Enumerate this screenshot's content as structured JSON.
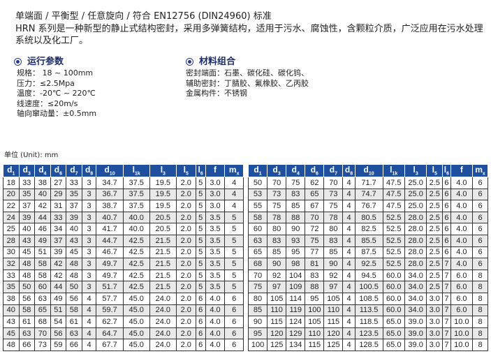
{
  "intro": {
    "line1": "单端面 / 平衡型 / 任意旋向 / 符合 EN12756 (DIN24960) 标准",
    "line2": "HRN 系列是一种新型的静止式结构密封，采用多弹簧结构，适用于污水、腐蚀性，含颗粒介质，广泛应用在污水处理",
    "line3": "系统以及化工厂。"
  },
  "operating": {
    "title": "运行参数",
    "items": [
      "规格： 18 ~ 100mm",
      "压力：≤2.5Mpa",
      "温度：-20℃ ~ 220℃",
      "线速度：≤20m/s",
      "轴向窜动量：±0.5mm"
    ]
  },
  "materials": {
    "title": "材料组合",
    "items": [
      "密封端面：石墨、碳化硅、碳化钨、",
      "辅助密封：丁腈胶、氟橡胶、乙丙胶",
      "金属构件：不锈钢"
    ]
  },
  "unit": "单位 (Unit): mm",
  "colors": {
    "header": "#1f4f9f",
    "alt_row": "#e9e9e9"
  },
  "headers": [
    [
      "d",
      "1"
    ],
    [
      "d",
      "3"
    ],
    [
      "d",
      "4"
    ],
    [
      "d",
      "6"
    ],
    [
      "d",
      "7"
    ],
    [
      "d",
      "8"
    ],
    [
      "d",
      "10"
    ],
    [
      "l",
      "1k"
    ],
    [
      "l",
      "3"
    ],
    [
      "l",
      "5"
    ],
    [
      "l",
      "6"
    ],
    [
      "f",
      ""
    ],
    [
      "m",
      "x"
    ]
  ],
  "left_rows": [
    [
      "18",
      "33",
      "38",
      "27",
      "33",
      "3",
      "34.7",
      "37.5",
      "19.5",
      "2.0",
      "5",
      "3.0",
      "4"
    ],
    [
      "20",
      "35",
      "40",
      "29",
      "35",
      "3",
      "36.7",
      "37.5",
      "19.5",
      "2.0",
      "5",
      "3.0",
      "4"
    ],
    [
      "22",
      "37",
      "42",
      "31",
      "37",
      "3",
      "38.7",
      "37.5",
      "19.5",
      "2.0",
      "5",
      "3.0",
      "4"
    ],
    [
      "24",
      "39",
      "44",
      "33",
      "39",
      "3",
      "40.7",
      "40.0",
      "20.5",
      "2.0",
      "5",
      "3.5",
      "5"
    ],
    [
      "25",
      "40",
      "46",
      "34",
      "40",
      "3",
      "41.7",
      "40.0",
      "20.5",
      "2.0",
      "5",
      "3.5",
      "5"
    ],
    [
      "28",
      "43",
      "49",
      "37",
      "43",
      "3",
      "44.7",
      "42.5",
      "21.5",
      "2.0",
      "5",
      "3.5",
      "5"
    ],
    [
      "30",
      "45",
      "51",
      "39",
      "45",
      "3",
      "46.7",
      "42.5",
      "21.5",
      "2.0",
      "5",
      "3.5",
      "5"
    ],
    [
      "32",
      "48",
      "58",
      "42",
      "48",
      "3",
      "49.7",
      "42.5",
      "21.5",
      "2.0",
      "5",
      "3.5",
      "5"
    ],
    [
      "33",
      "48",
      "58",
      "42",
      "48",
      "3",
      "49.7",
      "42.5",
      "21.5",
      "2.0",
      "5",
      "3.5",
      "5"
    ],
    [
      "35",
      "50",
      "60",
      "44",
      "50",
      "3",
      "51.7",
      "42.5",
      "21.5",
      "2.0",
      "5",
      "3.5",
      "5"
    ],
    [
      "38",
      "56",
      "63",
      "49",
      "56",
      "4",
      "57.7",
      "45.0",
      "24.0",
      "2.0",
      "6",
      "4.0",
      "6"
    ],
    [
      "40",
      "58",
      "65",
      "51",
      "58",
      "4",
      "59.7",
      "45.0",
      "24.0",
      "2.0",
      "6",
      "4.0",
      "6"
    ],
    [
      "43",
      "61",
      "68",
      "54",
      "61",
      "4",
      "62.7",
      "45.0",
      "24.0",
      "2.0",
      "6",
      "4.0",
      "6"
    ],
    [
      "45",
      "63",
      "70",
      "56",
      "63",
      "4",
      "64.7",
      "45.0",
      "24.0",
      "2.0",
      "6",
      "4.0",
      "6"
    ],
    [
      "48",
      "66",
      "73",
      "59",
      "66",
      "4",
      "67.7",
      "45.0",
      "24.0",
      "2.0",
      "6",
      "4.0",
      "6"
    ]
  ],
  "right_rows": [
    [
      "50",
      "70",
      "75",
      "62",
      "70",
      "4",
      "71.7",
      "47.5",
      "25.0",
      "2.5",
      "6",
      "4.0",
      "6"
    ],
    [
      "53",
      "73",
      "83",
      "65",
      "73",
      "4",
      "74.7",
      "47.5",
      "25.0",
      "2.5",
      "6",
      "4.0",
      "6"
    ],
    [
      "55",
      "75",
      "85",
      "67",
      "75",
      "4",
      "76.7",
      "47.5",
      "25.0",
      "2.5",
      "6",
      "4.0",
      "6"
    ],
    [
      "58",
      "78",
      "88",
      "70",
      "78",
      "4",
      "80.5",
      "52.5",
      "28.0",
      "2.5",
      "6",
      "4.0",
      "6"
    ],
    [
      "60",
      "80",
      "90",
      "72",
      "80",
      "4",
      "82.5",
      "52.5",
      "28.0",
      "2.5",
      "6",
      "4.0",
      "6"
    ],
    [
      "63",
      "83",
      "93",
      "75",
      "83",
      "4",
      "85.5",
      "52.5",
      "28.0",
      "2.5",
      "6",
      "4.0",
      "6"
    ],
    [
      "65",
      "85",
      "95",
      "77",
      "85",
      "4",
      "87.5",
      "52.5",
      "28.0",
      "2.5",
      "6",
      "4.0",
      "6"
    ],
    [
      "68",
      "90",
      "98",
      "81",
      "90",
      "4",
      "92.5",
      "52.5",
      "28.0",
      "2.5",
      "7",
      "4.0",
      "6"
    ],
    [
      "70",
      "92",
      "104",
      "83",
      "92",
      "4",
      "94.5",
      "60.0",
      "34.0",
      "2.5",
      "7",
      "6.0",
      "8"
    ],
    [
      "75",
      "97",
      "109",
      "88",
      "97",
      "4",
      "100.5",
      "60.0",
      "34.0",
      "2.5",
      "7",
      "6.0",
      "8"
    ],
    [
      "80",
      "105",
      "114",
      "95",
      "105",
      "4",
      "108.5",
      "60.0",
      "34.0",
      "3.0",
      "7",
      "6.0",
      "8"
    ],
    [
      "85",
      "110",
      "119",
      "100",
      "110",
      "4",
      "113.5",
      "60.0",
      "34.0",
      "3.0",
      "7",
      "6.0",
      "8"
    ],
    [
      "90",
      "115",
      "124",
      "105",
      "115",
      "4",
      "118.5",
      "65.0",
      "39.0",
      "3.0",
      "7",
      "10.0",
      "8"
    ],
    [
      "95",
      "120",
      "129",
      "110",
      "120",
      "4",
      "123.5",
      "65.0",
      "39.0",
      "3.0",
      "7",
      "10.0",
      "8"
    ],
    [
      "100",
      "125",
      "134",
      "115",
      "125",
      "4",
      "128.5",
      "65.0",
      "39.0",
      "3.0",
      "7",
      "10.0",
      "8"
    ]
  ]
}
